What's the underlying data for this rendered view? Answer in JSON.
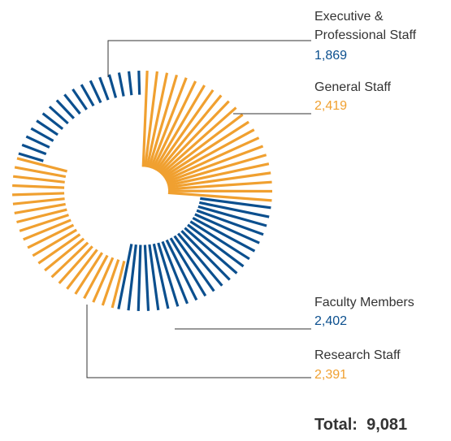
{
  "chart_data": {
    "type": "pie",
    "categories": [
      "General Staff",
      "Faculty Members",
      "Research Staff",
      "Executive & Professional Staff"
    ],
    "values": [
      2419,
      2402,
      2391,
      1869
    ],
    "value_labels": [
      "2,419",
      "2,402",
      "2,391",
      "1,869"
    ],
    "colors": [
      "#f0a030",
      "#0b4f8e",
      "#f0a030",
      "#0b4f8e"
    ],
    "total_label": "Total:",
    "total": 9081,
    "total_value_label": "9,081"
  }
}
